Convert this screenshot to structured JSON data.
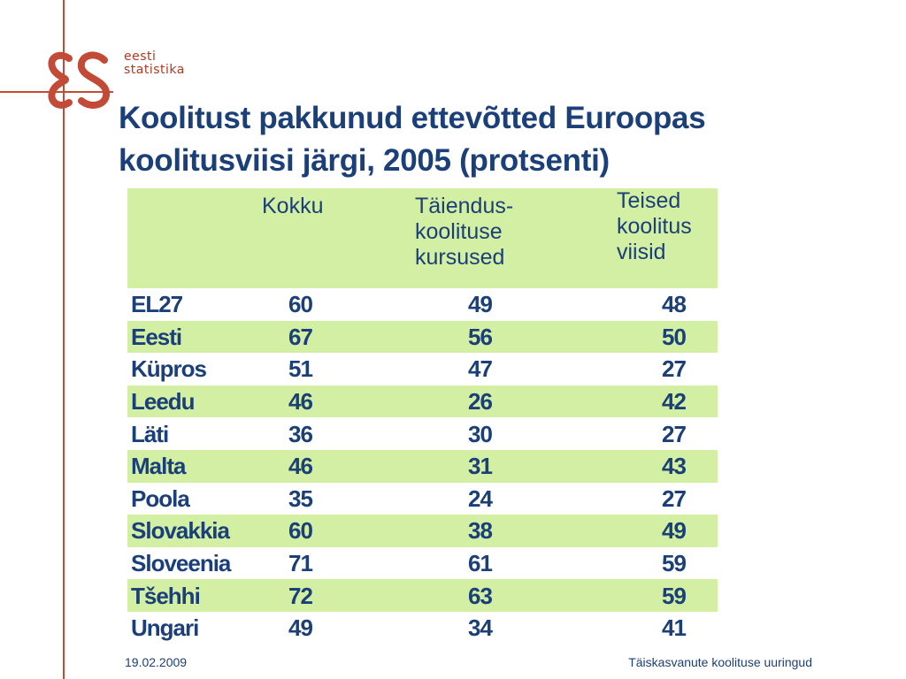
{
  "brand": {
    "logo_mark": "es-logo-mark",
    "line1": "eesti",
    "line2": "statistika",
    "color": "#b5371f"
  },
  "title": {
    "line1": "Koolitust pakkunud ettevõtted Euroopas",
    "line2": "koolitusviisi järgi, 2005 (protsenti)"
  },
  "table": {
    "headers": {
      "col0": "",
      "col1": "Kokku",
      "col2_lines": [
        "Täiendus-",
        "koolituse",
        "kursused"
      ],
      "col3_lines": [
        "Teised",
        "koolitus",
        "viisid"
      ]
    },
    "rows": [
      {
        "country": "EL27",
        "kokku": "60",
        "taiendus": "49",
        "teised": "48"
      },
      {
        "country": "Eesti",
        "kokku": "67",
        "taiendus": "56",
        "teised": "50"
      },
      {
        "country": "Küpros",
        "kokku": "51",
        "taiendus": "47",
        "teised": "27"
      },
      {
        "country": "Leedu",
        "kokku": "46",
        "taiendus": "26",
        "teised": "42"
      },
      {
        "country": "Läti",
        "kokku": "36",
        "taiendus": "30",
        "teised": "27"
      },
      {
        "country": "Malta",
        "kokku": "46",
        "taiendus": "31",
        "teised": "43"
      },
      {
        "country": "Poola",
        "kokku": "35",
        "taiendus": "24",
        "teised": "27"
      },
      {
        "country": "Slovakkia",
        "kokku": "60",
        "taiendus": "38",
        "teised": "49"
      },
      {
        "country": "Sloveenia",
        "kokku": "71",
        "taiendus": "61",
        "teised": "59"
      },
      {
        "country": "Tšehhi",
        "kokku": "72",
        "taiendus": "63",
        "teised": "59"
      },
      {
        "country": "Ungari",
        "kokku": "49",
        "taiendus": "34",
        "teised": "41"
      }
    ]
  },
  "footer": {
    "date": "19.02.2009",
    "title": "Täiskasvanute koolituse uuringud"
  },
  "colors": {
    "accent_red": "#c24a36",
    "title_blue": "#1b3f78",
    "row_highlight": "#d3efa4"
  }
}
